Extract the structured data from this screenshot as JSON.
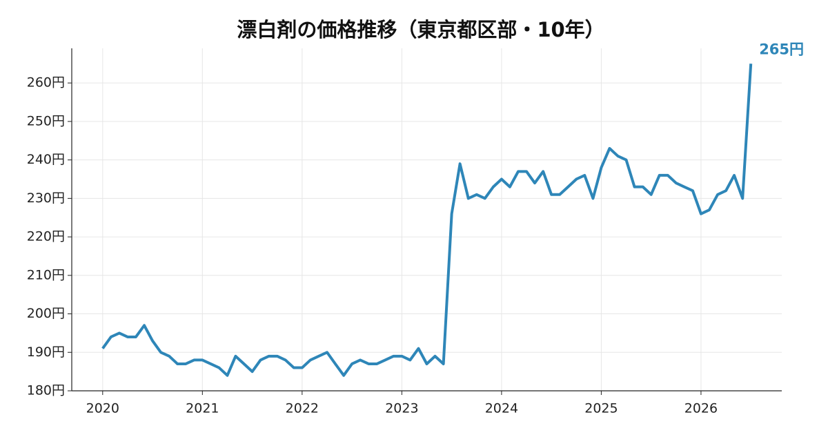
{
  "chart_data": {
    "type": "line",
    "title": "漂白剤の価格推移（東京都区部・10年）",
    "x": [
      2020,
      2020.083,
      2020.167,
      2020.25,
      2020.333,
      2020.417,
      2020.5,
      2020.583,
      2020.667,
      2020.75,
      2020.833,
      2020.917,
      2021,
      2021.083,
      2021.167,
      2021.25,
      2021.333,
      2021.417,
      2021.5,
      2021.583,
      2021.667,
      2021.75,
      2021.833,
      2021.917,
      2022,
      2022.083,
      2022.167,
      2022.25,
      2022.333,
      2022.417,
      2022.5,
      2022.583,
      2022.667,
      2022.75,
      2022.833,
      2022.917,
      2023,
      2023.083,
      2023.167,
      2023.25,
      2023.333,
      2023.417,
      2023.5,
      2023.583,
      2023.667,
      2023.75,
      2023.833,
      2023.917,
      2024,
      2024.083,
      2024.167,
      2024.25,
      2024.333,
      2024.417,
      2024.5,
      2024.583,
      2024.667,
      2024.75,
      2024.833,
      2024.917,
      2025,
      2025.083,
      2025.167,
      2025.25,
      2025.333,
      2025.417,
      2025.5,
      2025.583,
      2025.667,
      2025.75,
      2025.833,
      2025.917,
      2026,
      2026.083,
      2026.167,
      2026.25,
      2026.333,
      2026.417,
      2026.5
    ],
    "series": [
      {
        "name": "漂白剤",
        "color": "#2e86b8",
        "values": [
          191,
          194,
          195,
          194,
          194,
          197,
          193,
          190,
          189,
          187,
          187,
          188,
          188,
          187,
          186,
          184,
          189,
          187,
          185,
          188,
          189,
          189,
          188,
          186,
          186,
          188,
          189,
          190,
          187,
          184,
          187,
          188,
          187,
          187,
          188,
          189,
          189,
          188,
          191,
          187,
          189,
          187,
          226,
          239,
          230,
          231,
          230,
          233,
          235,
          233,
          237,
          237,
          234,
          237,
          231,
          231,
          233,
          235,
          236,
          230,
          238,
          243,
          241,
          240,
          233,
          233,
          231,
          236,
          236,
          234,
          233,
          232,
          226,
          227,
          231,
          232,
          236,
          230,
          265
        ],
        "value_labels": [
          null,
          null,
          null,
          null,
          null,
          null,
          null,
          null,
          null,
          null,
          null,
          null,
          null,
          null,
          null,
          null,
          null,
          null,
          null,
          null,
          null,
          null,
          null,
          null,
          null,
          null,
          null,
          null,
          null,
          null,
          null,
          null,
          null,
          null,
          null,
          null,
          null,
          null,
          null,
          null,
          null,
          null,
          null,
          null,
          null,
          null,
          null,
          null,
          null,
          null,
          null,
          null,
          null,
          null,
          null,
          null,
          null,
          null,
          null,
          null,
          null,
          null,
          null,
          null,
          null,
          null,
          null,
          null,
          null,
          null,
          null,
          null,
          null,
          null,
          null,
          null,
          null,
          null,
          "265円"
        ]
      }
    ],
    "xlim": [
      2019.69,
      2026.81
    ],
    "xticks": [
      2020,
      2021,
      2022,
      2023,
      2024,
      2025,
      2026
    ],
    "ylim": [
      180,
      269
    ],
    "yticks": [
      {
        "value": 180,
        "label": "180円"
      },
      {
        "value": 190,
        "label": "190円"
      },
      {
        "value": 200,
        "label": "200円"
      },
      {
        "value": 210,
        "label": "210円"
      },
      {
        "value": 220,
        "label": "220円"
      },
      {
        "value": 230,
        "label": "230円"
      },
      {
        "value": 240,
        "label": "240円"
      },
      {
        "value": 250,
        "label": "250円"
      },
      {
        "value": 260,
        "label": "260円"
      }
    ],
    "grid": true
  }
}
